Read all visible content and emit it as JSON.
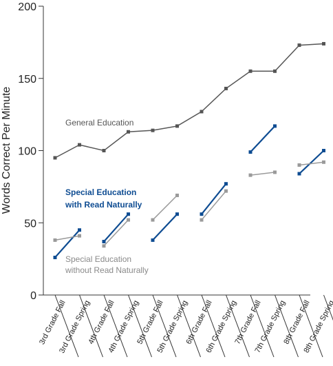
{
  "chart_data": {
    "type": "line",
    "title": "",
    "xlabel": "",
    "ylabel": "Words Correct Per Minute",
    "ylim": [
      0,
      200
    ],
    "yticks": [
      0,
      50,
      100,
      150,
      200
    ],
    "grid": false,
    "categories": [
      "3rd Grade Fall",
      "3rd Grade Spring",
      "4th Grade Fall",
      "4th Grade Spring",
      "5th Grade Fall",
      "5th Grade Spring",
      "6th Grade Fall",
      "6th Grade Spring",
      "7th Grade Fall",
      "7th Grade Spring",
      "8th Grade Fall",
      "8th Grade Spring"
    ],
    "series": [
      {
        "name": "General Education",
        "color": "#555555",
        "values": [
          95,
          104,
          100,
          113,
          114,
          117,
          127,
          143,
          155,
          155,
          173,
          174
        ]
      },
      {
        "name": "Special Education with Read Naturally",
        "color": "#0e4c92",
        "values": [
          26,
          45,
          37,
          56,
          38,
          56,
          56,
          77,
          99,
          117,
          84,
          100
        ],
        "segments": [
          [
            0,
            1
          ],
          [
            2,
            3
          ],
          [
            4,
            5
          ],
          [
            6,
            7
          ],
          [
            8,
            9
          ],
          [
            10,
            11
          ]
        ]
      },
      {
        "name": "Special Education without Read Naturally",
        "color": "#9a9a9a",
        "values": [
          38,
          41,
          34,
          52,
          52,
          69,
          52,
          72,
          83,
          85,
          90,
          92
        ],
        "segments": [
          [
            0,
            1
          ],
          [
            2,
            3
          ],
          [
            4,
            5
          ],
          [
            6,
            7
          ],
          [
            8,
            9
          ],
          [
            10,
            11
          ]
        ]
      }
    ],
    "annotations": [
      {
        "text": "General Education",
        "color": "#555555"
      },
      {
        "text": "Special Education",
        "color": "#0e4c92"
      },
      {
        "text": "with Read Naturally",
        "color": "#0e4c92"
      },
      {
        "text": "Special Education",
        "color": "#8a8a8a"
      },
      {
        "text": "without Read Naturally",
        "color": "#8a8a8a"
      }
    ]
  }
}
